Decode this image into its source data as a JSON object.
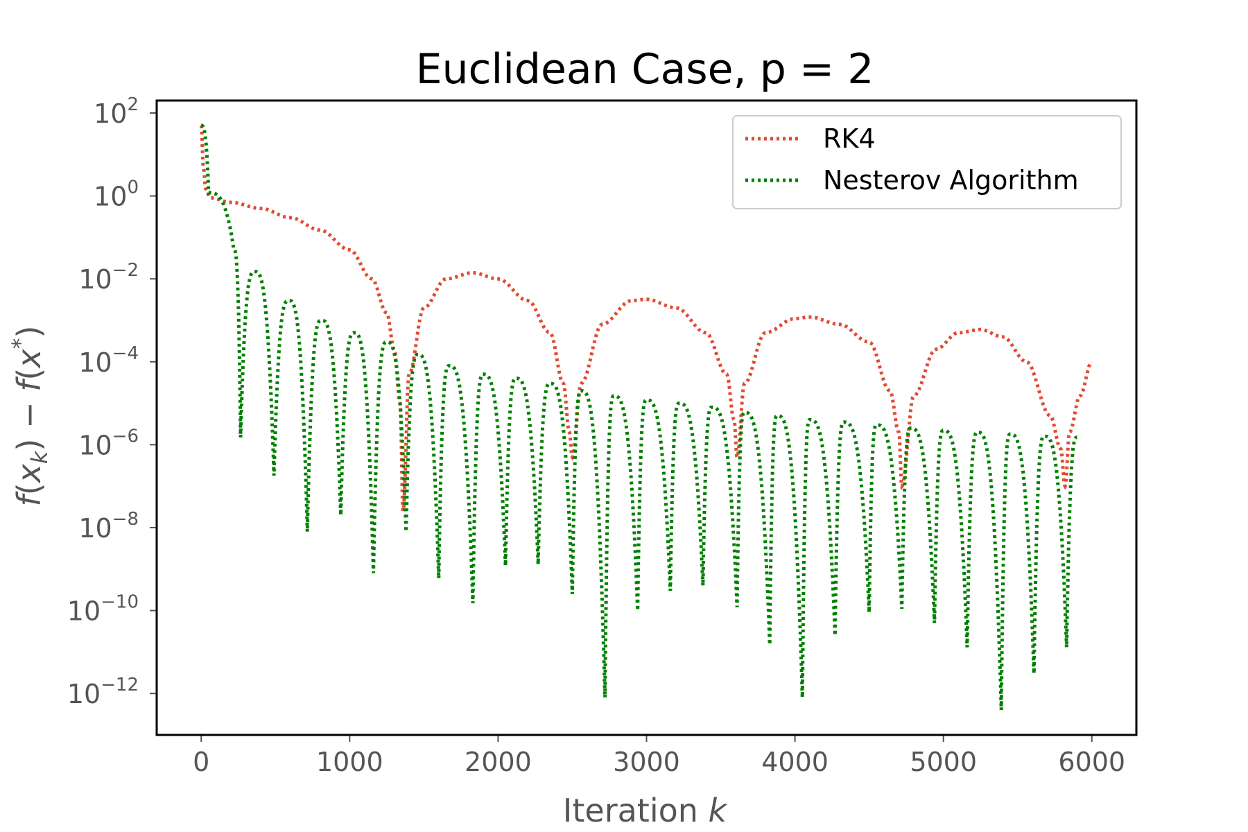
{
  "chart_data": {
    "type": "line",
    "title": "Euclidean Case, p = 2",
    "xlabel": "Iteration k",
    "ylabel": "f(x_k) − f(x*)",
    "xlim": [
      -300,
      6300
    ],
    "ylim": [
      1e-13,
      200
    ],
    "yscale": "log",
    "x_ticks": [
      0,
      1000,
      2000,
      3000,
      4000,
      5000,
      6000
    ],
    "y_ticks": [
      {
        "base": "10",
        "exp": "2",
        "value": 100
      },
      {
        "base": "10",
        "exp": "0",
        "value": 1
      },
      {
        "base": "10",
        "exp": "−2",
        "value": 0.01
      },
      {
        "base": "10",
        "exp": "−4",
        "value": 0.0001
      },
      {
        "base": "10",
        "exp": "−6",
        "value": 1e-06
      },
      {
        "base": "10",
        "exp": "−8",
        "value": 1e-08
      },
      {
        "base": "10",
        "exp": "−10",
        "value": 1e-10
      },
      {
        "base": "10",
        "exp": "−12",
        "value": 1e-12
      }
    ],
    "legend_position": "top-right",
    "grid": false,
    "series": [
      {
        "name": "RK4",
        "color": "#e24a33",
        "style": "dotted",
        "x": [
          0,
          15,
          30,
          60,
          200,
          400,
          600,
          800,
          1000,
          1150,
          1250,
          1300,
          1340,
          1360,
          1400,
          1500,
          1650,
          1830,
          2000,
          2200,
          2350,
          2440,
          2480,
          2500,
          2560,
          2700,
          2900,
          3000,
          3200,
          3400,
          3540,
          3590,
          3610,
          3660,
          3800,
          4000,
          4100,
          4300,
          4500,
          4640,
          4700,
          4720,
          4800,
          4950,
          5100,
          5250,
          5400,
          5560,
          5720,
          5790,
          5820,
          5850,
          5920,
          6000
        ],
        "y": [
          50,
          5,
          1.5,
          0.9,
          0.7,
          0.5,
          0.3,
          0.15,
          0.05,
          0.01,
          0.0015,
          0.0002,
          1e-05,
          2.5e-08,
          5e-05,
          0.002,
          0.01,
          0.014,
          0.01,
          0.003,
          0.0005,
          3e-05,
          2e-06,
          5e-07,
          3e-05,
          0.0008,
          0.003,
          0.0032,
          0.002,
          0.0005,
          5e-05,
          4e-06,
          5e-07,
          3e-05,
          0.0005,
          0.0011,
          0.0012,
          0.0008,
          0.0003,
          2e-05,
          2e-06,
          1e-07,
          1.5e-05,
          0.0002,
          0.0005,
          0.0006,
          0.0004,
          0.0001,
          5e-06,
          8e-07,
          1e-07,
          2e-06,
          1.5e-05,
          0.0001
        ]
      },
      {
        "name": "Nesterov Algorithm",
        "color": "#008000",
        "style": "dotted",
        "peaks": [
          [
            0,
            50
          ],
          [
            50,
            1.2
          ],
          [
            220,
            0.05
          ],
          [
            360,
            0.015
          ],
          [
            590,
            0.003
          ],
          [
            810,
            0.001
          ],
          [
            1030,
            0.0005
          ],
          [
            1250,
            0.0003
          ],
          [
            1460,
            0.00015
          ],
          [
            1670,
            8e-05
          ],
          [
            1900,
            5e-05
          ],
          [
            2120,
            4e-05
          ],
          [
            2350,
            3e-05
          ],
          [
            2560,
            2e-05
          ],
          [
            2780,
            1.5e-05
          ],
          [
            3000,
            1.2e-05
          ],
          [
            3220,
            1e-05
          ],
          [
            3440,
            8e-06
          ],
          [
            3660,
            6e-06
          ],
          [
            3880,
            5e-06
          ],
          [
            4100,
            4e-06
          ],
          [
            4330,
            3.5e-06
          ],
          [
            4550,
            3e-06
          ],
          [
            4780,
            2.5e-06
          ],
          [
            5000,
            2.2e-06
          ],
          [
            5230,
            2e-06
          ],
          [
            5450,
            1.8e-06
          ],
          [
            5680,
            1.6e-06
          ],
          [
            5900,
            1.5e-06
          ],
          [
            6000,
            6e-07
          ]
        ],
        "troughs": [
          [
            265,
            1.5e-06
          ],
          [
            490,
            1.8e-07
          ],
          [
            715,
            8e-09
          ],
          [
            940,
            2e-08
          ],
          [
            1160,
            8e-10
          ],
          [
            1380,
            8e-09
          ],
          [
            1600,
            6e-10
          ],
          [
            1830,
            1.5e-10
          ],
          [
            2050,
            1.2e-09
          ],
          [
            2270,
            1.3e-09
          ],
          [
            2500,
            2.5e-10
          ],
          [
            2720,
            8e-13
          ],
          [
            2940,
            1e-10
          ],
          [
            3160,
            3e-10
          ],
          [
            3380,
            4e-10
          ],
          [
            3610,
            1.2e-10
          ],
          [
            3830,
            1.5e-11
          ],
          [
            4050,
            8e-13
          ],
          [
            4270,
            2.5e-11
          ],
          [
            4500,
            9e-11
          ],
          [
            4720,
            1.1e-10
          ],
          [
            4940,
            5e-11
          ],
          [
            5160,
            1.3e-11
          ],
          [
            5390,
            4e-13
          ],
          [
            5610,
            3e-12
          ],
          [
            5830,
            1.3e-11
          ]
        ]
      }
    ]
  }
}
